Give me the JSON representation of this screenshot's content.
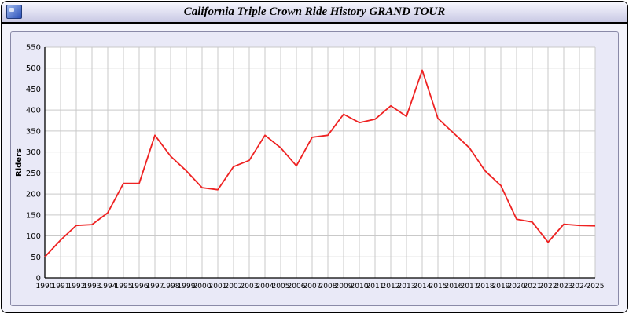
{
  "window": {
    "title": "California Triple Crown Ride History GRAND TOUR"
  },
  "chart_data": {
    "type": "line",
    "title": "California Triple Crown Ride History GRAND TOUR",
    "xlabel": "",
    "ylabel": "Riders",
    "ylim": [
      0,
      550
    ],
    "ytick_step": 50,
    "grid": true,
    "legend_position": "none",
    "line_color": "#ee2222",
    "plot_bg": "#ffffff",
    "grid_color": "#c9c9c9",
    "axis_color": "#000000",
    "categories": [
      "1990",
      "1991",
      "1992",
      "1993",
      "1994",
      "1995",
      "1996",
      "1997",
      "1998",
      "1999",
      "2000",
      "2001",
      "2002",
      "2003",
      "2004",
      "2005",
      "2006",
      "2007",
      "2008",
      "2009",
      "2010",
      "2011",
      "2012",
      "2013",
      "2014",
      "2015",
      "2016",
      "2017",
      "2018",
      "2019",
      "2020",
      "2021",
      "2022",
      "2023",
      "2024",
      "2025"
    ],
    "values": [
      50,
      90,
      125,
      127,
      155,
      225,
      225,
      340,
      290,
      255,
      215,
      210,
      265,
      280,
      340,
      310,
      267,
      335,
      340,
      390,
      370,
      378,
      410,
      385,
      495,
      380,
      345,
      310,
      255,
      220,
      140,
      133,
      85,
      128,
      125,
      124
    ]
  }
}
